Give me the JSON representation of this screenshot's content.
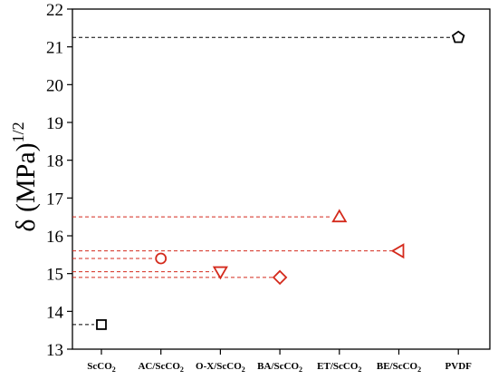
{
  "chart_data": {
    "type": "scatter",
    "title": "",
    "xlabel": "",
    "ylabel": "δ (MPa)",
    "ylabel_superscript": "1/2",
    "ylim": [
      13,
      22
    ],
    "yticks": [
      13,
      14,
      15,
      16,
      17,
      18,
      19,
      20,
      21,
      22
    ],
    "ytick_labels": [
      "13",
      "14",
      "15",
      "16",
      "17",
      "18",
      "19",
      "20",
      "21",
      "22"
    ],
    "grid": false,
    "legend": "none",
    "categories": [
      {
        "base": "ScCO",
        "sub": "2"
      },
      {
        "base": "AC/ScCO",
        "sub": "2"
      },
      {
        "base": "O-X/ScCO",
        "sub": "2"
      },
      {
        "base": "BA/ScCO",
        "sub": "2"
      },
      {
        "base": "ET/ScCO",
        "sub": "2"
      },
      {
        "base": "BE/ScCO",
        "sub": "2"
      },
      {
        "base": "PVDF",
        "sub": ""
      }
    ],
    "points": [
      {
        "category_index": 0,
        "value": 13.65,
        "marker": "square",
        "color": "#000000"
      },
      {
        "category_index": 1,
        "value": 15.4,
        "marker": "circle",
        "color": "#d42a1c"
      },
      {
        "category_index": 2,
        "value": 15.05,
        "marker": "triangle-down",
        "color": "#d42a1c"
      },
      {
        "category_index": 3,
        "value": 14.9,
        "marker": "diamond",
        "color": "#d42a1c"
      },
      {
        "category_index": 4,
        "value": 16.5,
        "marker": "triangle-up",
        "color": "#d42a1c"
      },
      {
        "category_index": 5,
        "value": 15.6,
        "marker": "triangle-left",
        "color": "#d42a1c"
      },
      {
        "category_index": 6,
        "value": 21.25,
        "marker": "pentagon",
        "color": "#000000"
      }
    ],
    "reference_lines": "dashed horizontal line from the left axis to each point",
    "colors": {
      "solvent": "#d42a1c",
      "reference": "#000000"
    }
  }
}
